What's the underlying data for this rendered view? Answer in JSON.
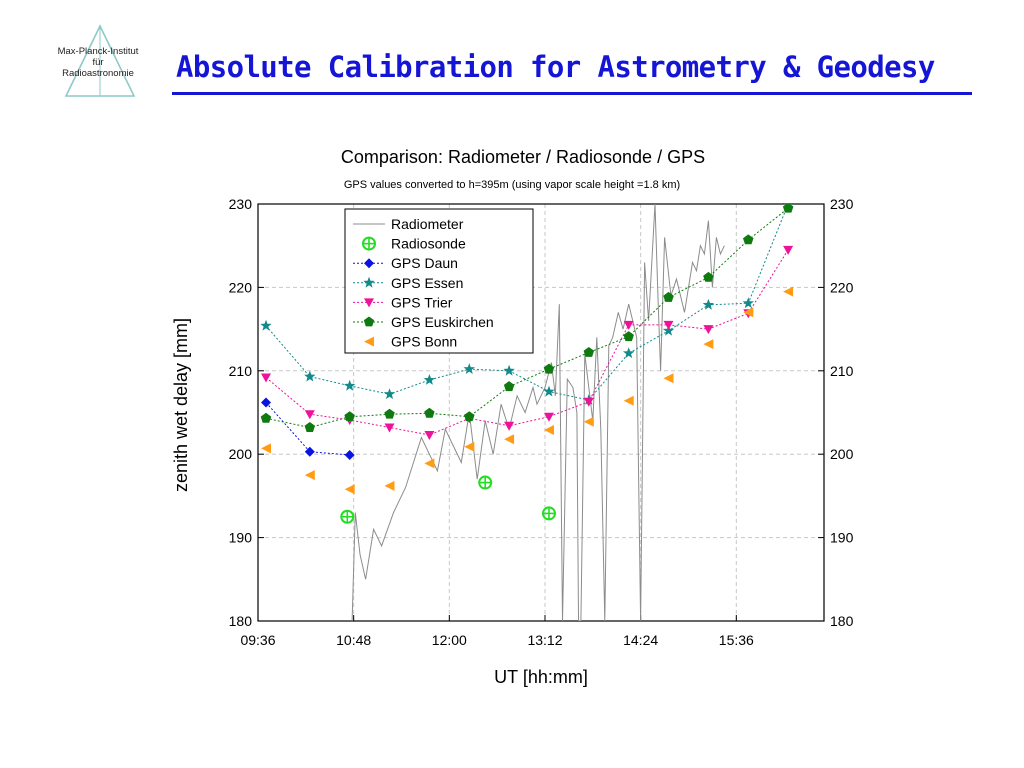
{
  "header": {
    "logo_lines": [
      "Max-Planck-Institut",
      "für",
      "Radioastronomie"
    ],
    "title": "Absolute Calibration for Astrometry & Geodesy"
  },
  "colors": {
    "title": "#1515d6",
    "radiometer": "#8c8c8c",
    "radiosonde": "#22dd22",
    "gps_daun": "#0a14e0",
    "gps_essen": "#138a8a",
    "gps_trier": "#ee1199",
    "gps_euskirchen": "#0f7a0f",
    "gps_bonn": "#ff9c14"
  },
  "chart_data": {
    "type": "line",
    "title": "Comparison: Radiometer / Radiosonde / GPS",
    "subtitle": "GPS values converted to h=395m (using vapor scale height =1.8 km)",
    "xlabel": "UT [hh:mm]",
    "ylabel": "zenith wet delay [mm]",
    "x_unit": "hours UT",
    "xlim": [
      9.6,
      16.7
    ],
    "ylim": [
      180,
      230
    ],
    "x_ticks": [
      {
        "value": 9.6,
        "label": "09:36"
      },
      {
        "value": 10.8,
        "label": "10:48"
      },
      {
        "value": 12.0,
        "label": "12:00"
      },
      {
        "value": 13.2,
        "label": "13:12"
      },
      {
        "value": 14.4,
        "label": "14:24"
      },
      {
        "value": 15.6,
        "label": "15:36"
      }
    ],
    "y_ticks": [
      180,
      190,
      200,
      210,
      220,
      230
    ],
    "right_axis_ticks": [
      180,
      190,
      200,
      210,
      220,
      230
    ],
    "grid": true,
    "legend_position": "top-left",
    "series": [
      {
        "name": "Radiometer",
        "marker": "line",
        "color_key": "radiometer",
        "x": [
          10.78,
          10.82,
          10.88,
          10.95,
          11.05,
          11.15,
          11.3,
          11.45,
          11.55,
          11.65,
          11.75,
          11.85,
          11.95,
          12.05,
          12.15,
          12.25,
          12.35,
          12.45,
          12.55,
          12.65,
          12.75,
          12.85,
          12.95,
          13.05,
          13.1,
          13.2,
          13.28,
          13.33,
          13.38,
          13.42,
          13.48,
          13.55,
          13.6,
          13.62,
          13.65,
          13.7,
          13.75,
          13.8,
          13.85,
          13.9,
          13.95,
          14.0,
          14.05,
          14.12,
          14.18,
          14.25,
          14.3,
          14.35,
          14.4,
          14.45,
          14.5,
          14.58,
          14.62,
          14.65,
          14.7,
          14.78,
          14.85,
          14.95,
          15.05,
          15.1,
          15.15,
          15.2,
          15.25,
          15.3,
          15.35,
          15.4,
          15.45
        ],
        "y": [
          180,
          193,
          188,
          185,
          191,
          189,
          193,
          196,
          199,
          202,
          200,
          198,
          203,
          201,
          199,
          205,
          197,
          204,
          200,
          206,
          203,
          207,
          205,
          208,
          206,
          208,
          211,
          207,
          218,
          180,
          209,
          208,
          205,
          180,
          180,
          212,
          208,
          204,
          214,
          203,
          180,
          213,
          214,
          217,
          215,
          218,
          216,
          214,
          180,
          223,
          216,
          230,
          218,
          210,
          226,
          219,
          221,
          217,
          223,
          222,
          225,
          224,
          228,
          220,
          226,
          224,
          225
        ]
      },
      {
        "name": "Radiosonde",
        "marker": "circle-plus",
        "color_key": "radiosonde",
        "connect": false,
        "x": [
          10.72,
          12.45,
          13.25
        ],
        "y": [
          192.5,
          196.6,
          192.9
        ]
      },
      {
        "name": "GPS Daun",
        "marker": "diamond",
        "color_key": "gps_daun",
        "connect": true,
        "x": [
          9.7,
          10.25,
          10.75
        ],
        "y": [
          206.2,
          200.3,
          199.9
        ]
      },
      {
        "name": "GPS Essen",
        "marker": "star",
        "color_key": "gps_essen",
        "connect": true,
        "x": [
          9.7,
          10.25,
          10.75,
          11.25,
          11.75,
          12.25,
          12.75,
          13.25,
          13.75,
          14.25,
          14.75,
          15.25,
          15.75,
          16.25
        ],
        "y": [
          215.4,
          209.3,
          208.2,
          207.2,
          208.9,
          210.2,
          210.0,
          207.5,
          206.5,
          212.1,
          214.8,
          217.9,
          218.1,
          230.0
        ]
      },
      {
        "name": "GPS Trier",
        "marker": "triangle-down",
        "color_key": "gps_trier",
        "connect": true,
        "x": [
          9.7,
          10.25,
          10.75,
          11.25,
          11.75,
          12.25,
          12.75,
          13.25,
          13.75,
          14.25,
          14.75,
          15.25,
          15.75,
          16.25
        ],
        "y": [
          209.2,
          204.8,
          204.1,
          203.2,
          202.3,
          204.3,
          203.4,
          204.5,
          206.3,
          215.5,
          215.5,
          215.0,
          216.9,
          224.5
        ]
      },
      {
        "name": "GPS Euskirchen",
        "marker": "pentagon",
        "color_key": "gps_euskirchen",
        "connect": true,
        "x": [
          9.7,
          10.25,
          10.75,
          11.25,
          11.75,
          12.25,
          12.75,
          13.25,
          13.75,
          14.25,
          14.75,
          15.25,
          15.75,
          16.25
        ],
        "y": [
          204.3,
          203.2,
          204.5,
          204.8,
          204.9,
          204.5,
          208.1,
          210.2,
          212.2,
          214.1,
          218.8,
          221.2,
          225.7,
          229.5
        ]
      },
      {
        "name": "GPS Bonn",
        "marker": "triangle-left",
        "color_key": "gps_bonn",
        "connect": false,
        "x": [
          9.7,
          10.25,
          10.75,
          11.25,
          11.75,
          12.25,
          12.75,
          13.25,
          13.75,
          14.25,
          14.75,
          15.25,
          15.75,
          16.25
        ],
        "y": [
          200.7,
          197.5,
          195.8,
          196.2,
          198.9,
          200.9,
          201.8,
          202.9,
          203.9,
          206.4,
          209.1,
          213.2,
          217.0,
          219.5
        ]
      }
    ]
  }
}
